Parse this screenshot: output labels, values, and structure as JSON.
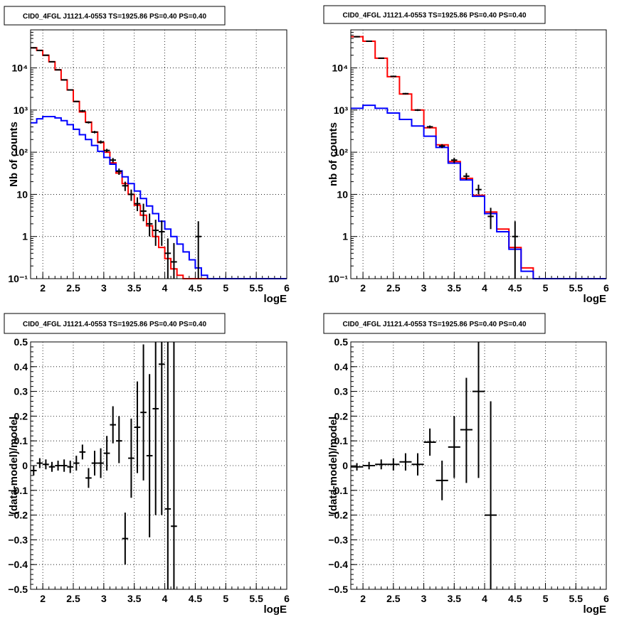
{
  "chart_data": [
    {
      "type": "histogram",
      "title": "CID0_4FGL J1121.4-0553 TS=1925.86 PS=0.40 PS=0.40",
      "xlabel": "logE",
      "ylabel": "Nb of counts",
      "xlim": [
        1.8,
        6
      ],
      "ylim": [
        0.1,
        80000
      ],
      "log_y": true,
      "grid": true,
      "x_ticks": [
        2,
        2.5,
        3,
        3.5,
        4,
        4.5,
        5,
        5.5,
        6
      ],
      "y_ticks": [
        {
          "value": 0.1,
          "label": "10⁻¹"
        },
        {
          "value": 1,
          "label": "1"
        },
        {
          "value": 10,
          "label": "10"
        },
        {
          "value": 100,
          "label": "10²"
        },
        {
          "value": 1000,
          "label": "10³"
        },
        {
          "value": 10000,
          "label": "10⁴"
        }
      ],
      "bin_edges": [
        1.8,
        1.9,
        2.0,
        2.1,
        2.2,
        2.3,
        2.4,
        2.5,
        2.6,
        2.7,
        2.8,
        2.9,
        3.0,
        3.1,
        3.2,
        3.3,
        3.4,
        3.5,
        3.6,
        3.7,
        3.8,
        3.9,
        4.0,
        4.1,
        4.2,
        4.3,
        4.4,
        4.5,
        4.6,
        4.7,
        4.8,
        4.9,
        5.0,
        5.1,
        5.2,
        5.3,
        5.4,
        5.5,
        5.6,
        5.7,
        5.8,
        5.9,
        6.0
      ],
      "series": [
        {
          "color": "#ff0000",
          "style": "step",
          "values": [
            30000,
            26000,
            20000,
            14000,
            9000,
            5200,
            3000,
            1600,
            900,
            520,
            300,
            170,
            100,
            56,
            32,
            18,
            10,
            5.5,
            3.2,
            1.8,
            1.0,
            0.55,
            0.3,
            0.17,
            0.12,
            0.1,
            0.1,
            0.1,
            0.1,
            0.1,
            0.1,
            0.1,
            0.1,
            0.1,
            0.1,
            0.1,
            0.1,
            0.1,
            0.1,
            0.1,
            0.1,
            0.1
          ]
        },
        {
          "color": "#0000ff",
          "style": "step",
          "values": [
            500,
            620,
            700,
            700,
            650,
            560,
            450,
            350,
            260,
            200,
            145,
            105,
            75,
            52,
            36,
            26,
            18,
            12,
            8,
            5.3,
            3.5,
            2.3,
            1.5,
            1.0,
            0.66,
            0.43,
            0.28,
            0.18,
            0.12,
            0.1,
            0.1,
            0.1,
            0.1,
            0.1,
            0.1,
            0.1,
            0.1,
            0.1,
            0.1,
            0.1,
            0.1,
            0.1
          ]
        }
      ],
      "data_points": [
        {
          "x": 1.85,
          "y": 30000,
          "lo": 29000,
          "hi": 31000
        },
        {
          "x": 1.95,
          "y": 26000,
          "lo": 25000,
          "hi": 27000
        },
        {
          "x": 2.05,
          "y": 20000,
          "lo": 19500,
          "hi": 20500
        },
        {
          "x": 2.15,
          "y": 14000,
          "lo": 13700,
          "hi": 14300
        },
        {
          "x": 2.25,
          "y": 9000,
          "lo": 8800,
          "hi": 9200
        },
        {
          "x": 2.35,
          "y": 5200,
          "lo": 5050,
          "hi": 5350
        },
        {
          "x": 2.45,
          "y": 3000,
          "lo": 2900,
          "hi": 3100
        },
        {
          "x": 2.55,
          "y": 1600,
          "lo": 1550,
          "hi": 1650
        },
        {
          "x": 2.65,
          "y": 950,
          "lo": 900,
          "hi": 1000
        },
        {
          "x": 2.75,
          "y": 510,
          "lo": 480,
          "hi": 540
        },
        {
          "x": 2.85,
          "y": 300,
          "lo": 280,
          "hi": 320
        },
        {
          "x": 2.95,
          "y": 175,
          "lo": 160,
          "hi": 190
        },
        {
          "x": 3.05,
          "y": 110,
          "lo": 100,
          "hi": 120
        },
        {
          "x": 3.15,
          "y": 65,
          "lo": 57,
          "hi": 73
        },
        {
          "x": 3.25,
          "y": 35,
          "lo": 29,
          "hi": 41
        },
        {
          "x": 3.35,
          "y": 16,
          "lo": 12,
          "hi": 20
        },
        {
          "x": 3.45,
          "y": 10,
          "lo": 7,
          "hi": 13
        },
        {
          "x": 3.55,
          "y": 6,
          "lo": 4,
          "hi": 8.5
        },
        {
          "x": 3.65,
          "y": 4,
          "lo": 2.3,
          "hi": 6
        },
        {
          "x": 3.75,
          "y": 2,
          "lo": 1,
          "hi": 3.5
        },
        {
          "x": 3.85,
          "y": 1.4,
          "lo": 0.6,
          "hi": 2.5
        },
        {
          "x": 3.95,
          "y": 1.3,
          "lo": 0.6,
          "hi": 2.4
        },
        {
          "x": 4.05,
          "y": 0.4,
          "lo": 0.1,
          "hi": 0.9
        },
        {
          "x": 4.15,
          "y": 0.25,
          "lo": 0.1,
          "hi": 0.7
        },
        {
          "x": 4.55,
          "y": 1,
          "lo": 0.1,
          "hi": 2.3
        }
      ]
    },
    {
      "type": "histogram",
      "title": "CID0_4FGL J1121.4-0553 TS=1925.86 PS=0.40 PS=0.40",
      "xlabel": "logE",
      "ylabel": "nb of counts",
      "xlim": [
        1.8,
        6
      ],
      "ylim": [
        0.1,
        80000
      ],
      "log_y": true,
      "grid": true,
      "x_ticks": [
        2,
        2.5,
        3,
        3.5,
        4,
        4.5,
        5,
        5.5,
        6
      ],
      "y_ticks": [
        {
          "value": 0.1,
          "label": "10⁻¹"
        },
        {
          "value": 1,
          "label": "1"
        },
        {
          "value": 10,
          "label": "10"
        },
        {
          "value": 100,
          "label": "10²"
        },
        {
          "value": 1000,
          "label": "10³"
        },
        {
          "value": 10000,
          "label": "10⁴"
        }
      ],
      "bin_edges": [
        1.8,
        2.0,
        2.2,
        2.4,
        2.6,
        2.8,
        3.0,
        3.2,
        3.4,
        3.6,
        3.8,
        4.0,
        4.2,
        4.4,
        4.6,
        4.8,
        5.0,
        5.2,
        5.4,
        5.6,
        5.8,
        6.0
      ],
      "series": [
        {
          "color": "#ff0000",
          "style": "step",
          "values": [
            55000,
            43000,
            17000,
            6200,
            2400,
            1000,
            380,
            150,
            60,
            24,
            9.5,
            3.8,
            1.5,
            0.55,
            0.18,
            0.1,
            0.1,
            0.1,
            0.1,
            0.1,
            0.1
          ]
        },
        {
          "color": "#0000ff",
          "style": "step",
          "values": [
            1100,
            1300,
            1100,
            850,
            600,
            420,
            240,
            130,
            55,
            22,
            9,
            3.5,
            1.3,
            0.5,
            0.15,
            0.1,
            0.1,
            0.1,
            0.1,
            0.1,
            0.1
          ]
        }
      ],
      "data_points": [
        {
          "x": 1.9,
          "y": 55000,
          "lo": 53000,
          "hi": 57000
        },
        {
          "x": 2.1,
          "y": 43000,
          "lo": 42000,
          "hi": 44000
        },
        {
          "x": 2.3,
          "y": 17000,
          "lo": 16600,
          "hi": 17400
        },
        {
          "x": 2.5,
          "y": 6300,
          "lo": 6100,
          "hi": 6500
        },
        {
          "x": 2.7,
          "y": 2450,
          "lo": 2350,
          "hi": 2550
        },
        {
          "x": 2.9,
          "y": 1000,
          "lo": 950,
          "hi": 1050
        },
        {
          "x": 3.1,
          "y": 400,
          "lo": 370,
          "hi": 430
        },
        {
          "x": 3.3,
          "y": 140,
          "lo": 125,
          "hi": 155
        },
        {
          "x": 3.5,
          "y": 65,
          "lo": 56,
          "hi": 74
        },
        {
          "x": 3.7,
          "y": 27,
          "lo": 22,
          "hi": 32
        },
        {
          "x": 3.9,
          "y": 13,
          "lo": 10,
          "hi": 17
        },
        {
          "x": 4.1,
          "y": 3,
          "lo": 1.5,
          "hi": 4.8
        },
        {
          "x": 4.5,
          "y": 1,
          "lo": 0.1,
          "hi": 2.3
        }
      ]
    },
    {
      "type": "scatter",
      "title": "CID0_4FGL J1121.4-0553 TS=1925.86 PS=0.40 PS=0.40",
      "xlabel": "logE",
      "ylabel": "(data-model)/model",
      "xlim": [
        1.8,
        6
      ],
      "ylim": [
        -0.5,
        0.5
      ],
      "log_y": false,
      "grid": true,
      "x_ticks": [
        2,
        2.5,
        3,
        3.5,
        4,
        4.5,
        5,
        5.5,
        6
      ],
      "y_ticks": [
        {
          "value": -0.5,
          "label": "−0.5"
        },
        {
          "value": -0.4,
          "label": "−0.4"
        },
        {
          "value": -0.3,
          "label": "−0.3"
        },
        {
          "value": -0.2,
          "label": "−0.2"
        },
        {
          "value": -0.1,
          "label": "−0.1"
        },
        {
          "value": 0,
          "label": "0"
        },
        {
          "value": 0.1,
          "label": "0.1"
        },
        {
          "value": 0.2,
          "label": "0.2"
        },
        {
          "value": 0.3,
          "label": "0.3"
        },
        {
          "value": 0.4,
          "label": "0.4"
        },
        {
          "value": 0.5,
          "label": "0.5"
        }
      ],
      "xerr": 0.05,
      "data_points": [
        {
          "x": 1.85,
          "y": -0.02,
          "lo": -0.04,
          "hi": 0.0
        },
        {
          "x": 1.95,
          "y": 0.01,
          "lo": -0.01,
          "hi": 0.03
        },
        {
          "x": 2.05,
          "y": 0.005,
          "lo": -0.015,
          "hi": 0.025
        },
        {
          "x": 2.15,
          "y": -0.005,
          "lo": -0.025,
          "hi": 0.015
        },
        {
          "x": 2.25,
          "y": 0.0,
          "lo": -0.02,
          "hi": 0.02
        },
        {
          "x": 2.35,
          "y": 0.0,
          "lo": -0.025,
          "hi": 0.025
        },
        {
          "x": 2.45,
          "y": -0.005,
          "lo": -0.03,
          "hi": 0.02
        },
        {
          "x": 2.55,
          "y": 0.01,
          "lo": -0.02,
          "hi": 0.04
        },
        {
          "x": 2.65,
          "y": 0.055,
          "lo": 0.025,
          "hi": 0.085
        },
        {
          "x": 2.75,
          "y": -0.05,
          "lo": -0.09,
          "hi": -0.01
        },
        {
          "x": 2.85,
          "y": 0.01,
          "lo": -0.04,
          "hi": 0.06
        },
        {
          "x": 2.95,
          "y": 0.01,
          "lo": -0.05,
          "hi": 0.07
        },
        {
          "x": 3.05,
          "y": 0.05,
          "lo": -0.02,
          "hi": 0.12
        },
        {
          "x": 3.15,
          "y": 0.165,
          "lo": 0.09,
          "hi": 0.24
        },
        {
          "x": 3.25,
          "y": 0.1,
          "lo": 0.01,
          "hi": 0.2
        },
        {
          "x": 3.35,
          "y": -0.295,
          "lo": -0.4,
          "hi": -0.19
        },
        {
          "x": 3.45,
          "y": 0.03,
          "lo": -0.13,
          "hi": 0.19
        },
        {
          "x": 3.55,
          "y": 0.155,
          "lo": -0.03,
          "hi": 0.34
        },
        {
          "x": 3.65,
          "y": 0.215,
          "lo": -0.06,
          "hi": 0.49
        },
        {
          "x": 3.75,
          "y": 0.04,
          "lo": -0.29,
          "hi": 0.37
        },
        {
          "x": 3.85,
          "y": 0.23,
          "lo": -0.2,
          "hi": 0.5
        },
        {
          "x": 3.95,
          "y": 0.41,
          "lo": -0.2,
          "hi": 0.5
        },
        {
          "x": 4.05,
          "y": -0.175,
          "lo": -0.5,
          "hi": 0.5
        },
        {
          "x": 4.15,
          "y": -0.245,
          "lo": -0.5,
          "hi": 0.5
        }
      ]
    },
    {
      "type": "scatter",
      "title": "CID0_4FGL J1121.4-0553 TS=1925.86 PS=0.40 PS=0.40",
      "xlabel": "logE",
      "ylabel": "(data-model)/model",
      "xlim": [
        1.8,
        6
      ],
      "ylim": [
        -0.5,
        0.5
      ],
      "log_y": false,
      "grid": true,
      "x_ticks": [
        2,
        2.5,
        3,
        3.5,
        4,
        4.5,
        5,
        5.5,
        6
      ],
      "y_ticks": [
        {
          "value": -0.5,
          "label": "−0.5"
        },
        {
          "value": -0.4,
          "label": "−0.4"
        },
        {
          "value": -0.3,
          "label": "−0.3"
        },
        {
          "value": -0.2,
          "label": "−0.2"
        },
        {
          "value": -0.1,
          "label": "−0.1"
        },
        {
          "value": 0,
          "label": "0"
        },
        {
          "value": 0.1,
          "label": "0.1"
        },
        {
          "value": 0.2,
          "label": "0.2"
        },
        {
          "value": 0.3,
          "label": "0.3"
        },
        {
          "value": 0.4,
          "label": "0.4"
        },
        {
          "value": 0.5,
          "label": "0.5"
        }
      ],
      "xerr": 0.1,
      "data_points": [
        {
          "x": 1.9,
          "y": -0.005,
          "lo": -0.02,
          "hi": 0.01
        },
        {
          "x": 2.1,
          "y": 0.0,
          "lo": -0.015,
          "hi": 0.015
        },
        {
          "x": 2.3,
          "y": 0.005,
          "lo": -0.015,
          "hi": 0.025
        },
        {
          "x": 2.5,
          "y": 0.005,
          "lo": -0.02,
          "hi": 0.03
        },
        {
          "x": 2.7,
          "y": 0.015,
          "lo": -0.02,
          "hi": 0.05
        },
        {
          "x": 2.9,
          "y": 0.005,
          "lo": -0.04,
          "hi": 0.05
        },
        {
          "x": 3.1,
          "y": 0.095,
          "lo": 0.04,
          "hi": 0.15
        },
        {
          "x": 3.3,
          "y": -0.06,
          "lo": -0.14,
          "hi": 0.02
        },
        {
          "x": 3.5,
          "y": 0.075,
          "lo": -0.05,
          "hi": 0.2
        },
        {
          "x": 3.7,
          "y": 0.145,
          "lo": -0.07,
          "hi": 0.355
        },
        {
          "x": 3.9,
          "y": 0.3,
          "lo": -0.05,
          "hi": 0.5
        },
        {
          "x": 4.1,
          "y": -0.2,
          "lo": -0.5,
          "hi": 0.26
        }
      ]
    }
  ]
}
